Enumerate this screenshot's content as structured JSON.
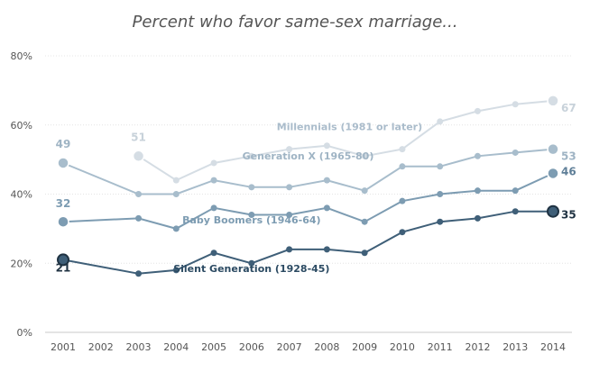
{
  "chart_data": {
    "type": "line",
    "title": "Percent who favor same-sex marriage...",
    "x": [
      2001,
      2003,
      2004,
      2005,
      2006,
      2007,
      2008,
      2009,
      2010,
      2011,
      2012,
      2013,
      2014
    ],
    "x_tick_labels": [
      "2001",
      "2002",
      "2003",
      "2004",
      "2005",
      "2006",
      "2007",
      "2008",
      "2009",
      "2010",
      "2011",
      "2012",
      "2013",
      "2014"
    ],
    "y_tick_labels": [
      "0%",
      "20%",
      "40%",
      "60%",
      "80%"
    ],
    "ylim": [
      0,
      80
    ],
    "xlim": [
      2001,
      2014
    ],
    "grid": "horizontal",
    "series": [
      {
        "name": "Millennials (1981 or later)",
        "color": "#d5dde4",
        "x": [
          2003,
          2004,
          2005,
          2006,
          2007,
          2008,
          2009,
          2010,
          2011,
          2012,
          2013,
          2014
        ],
        "values": [
          51,
          44,
          49,
          51,
          53,
          54,
          51,
          53,
          61,
          64,
          66,
          67
        ],
        "labels": [
          {
            "x": 2003,
            "text": "51"
          },
          {
            "x": 2014,
            "text": "67"
          }
        ]
      },
      {
        "name": "Generation X (1965-80)",
        "color": "#a8bdcc",
        "x": [
          2001,
          2003,
          2004,
          2005,
          2006,
          2007,
          2008,
          2009,
          2010,
          2011,
          2012,
          2013,
          2014
        ],
        "values": [
          49,
          40,
          40,
          44,
          42,
          42,
          44,
          41,
          48,
          48,
          51,
          52,
          53
        ],
        "labels": [
          {
            "x": 2001,
            "text": "49"
          },
          {
            "x": 2014,
            "text": "53"
          }
        ]
      },
      {
        "name": "Baby Boomers (1946-64)",
        "color": "#7d9cb2",
        "x": [
          2001,
          2003,
          2004,
          2005,
          2006,
          2007,
          2008,
          2009,
          2010,
          2011,
          2012,
          2013,
          2014
        ],
        "values": [
          32,
          33,
          30,
          36,
          34,
          34,
          36,
          32,
          38,
          40,
          41,
          41,
          46
        ],
        "labels": [
          {
            "x": 2001,
            "text": "32"
          },
          {
            "x": 2014,
            "text": "46"
          }
        ]
      },
      {
        "name": "Silent Generation (1928-45)",
        "color": "#3f5f78",
        "x": [
          2001,
          2003,
          2004,
          2005,
          2006,
          2007,
          2008,
          2009,
          2010,
          2011,
          2012,
          2013,
          2014
        ],
        "values": [
          21,
          17,
          18,
          23,
          20,
          24,
          24,
          23,
          29,
          32,
          33,
          35,
          35
        ],
        "labels": [
          {
            "x": 2001,
            "text": "21"
          },
          {
            "x": 2014,
            "text": "35"
          }
        ]
      }
    ]
  }
}
